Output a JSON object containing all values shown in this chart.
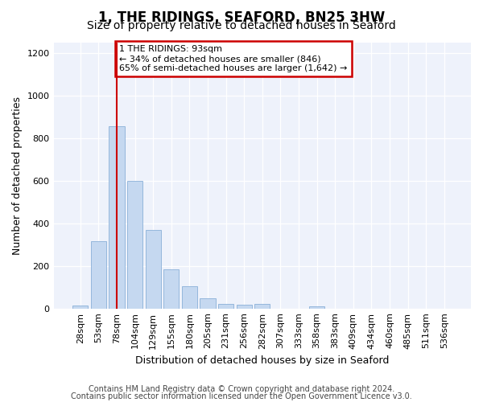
{
  "title": "1, THE RIDINGS, SEAFORD, BN25 3HW",
  "subtitle": "Size of property relative to detached houses in Seaford",
  "xlabel": "Distribution of detached houses by size in Seaford",
  "ylabel": "Number of detached properties",
  "bar_values": [
    15,
    315,
    855,
    600,
    370,
    185,
    105,
    47,
    22,
    18,
    20,
    0,
    0,
    12,
    0,
    0,
    0,
    0,
    0,
    0,
    0
  ],
  "xlabels": [
    "28sqm",
    "53sqm",
    "78sqm",
    "104sqm",
    "129sqm",
    "155sqm",
    "180sqm",
    "205sqm",
    "231sqm",
    "256sqm",
    "282sqm",
    "307sqm",
    "333sqm",
    "358sqm",
    "383sqm",
    "409sqm",
    "434sqm",
    "460sqm",
    "485sqm",
    "511sqm",
    "536sqm"
  ],
  "bar_color": "#c5d8f0",
  "bar_edge_color": "#8ab0d8",
  "vline_x_index": 2,
  "vline_color": "#cc0000",
  "ylim": [
    0,
    1250
  ],
  "yticks": [
    0,
    200,
    400,
    600,
    800,
    1000,
    1200
  ],
  "annotation_text": "1 THE RIDINGS: 93sqm\n← 34% of detached houses are smaller (846)\n65% of semi-detached houses are larger (1,642) →",
  "annotation_box_facecolor": "#ffffff",
  "annotation_box_edgecolor": "#cc0000",
  "footer1": "Contains HM Land Registry data © Crown copyright and database right 2024.",
  "footer2": "Contains public sector information licensed under the Open Government Licence v3.0.",
  "title_fontsize": 12,
  "subtitle_fontsize": 10,
  "ylabel_fontsize": 9,
  "xlabel_fontsize": 9,
  "tick_fontsize": 8,
  "annotation_fontsize": 8,
  "footer_fontsize": 7,
  "bg_color": "#eef2fb"
}
